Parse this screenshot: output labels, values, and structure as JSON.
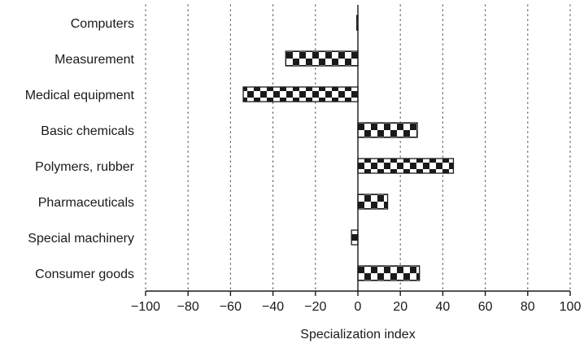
{
  "chart_data": {
    "type": "bar",
    "orientation": "horizontal",
    "categories": [
      "Computers",
      "Measurement",
      "Medical equipment",
      "Basic chemicals",
      "Polymers, rubber",
      "Pharmaceuticals",
      "Special machinery",
      "Consumer goods"
    ],
    "values": [
      -0.5,
      -34,
      -54,
      28,
      45,
      14,
      -3,
      29
    ],
    "title": "",
    "xlabel": "Specialization index",
    "ylabel": "",
    "xlim": [
      -100,
      100
    ],
    "xticks": [
      -100,
      -80,
      -60,
      -40,
      -20,
      0,
      20,
      40,
      60,
      80,
      100
    ],
    "xtick_labels": [
      "−100",
      "−80",
      "−60",
      "−40",
      "−20",
      "0",
      "20",
      "40",
      "60",
      "80",
      "100"
    ],
    "grid": "vertical dotted",
    "bar_pattern": "checkerboard",
    "colors": {
      "bar_dark": "#1a1a1a",
      "bar_light": "#ffffff",
      "axis": "#1a1a1a",
      "grid": "#555555"
    }
  }
}
